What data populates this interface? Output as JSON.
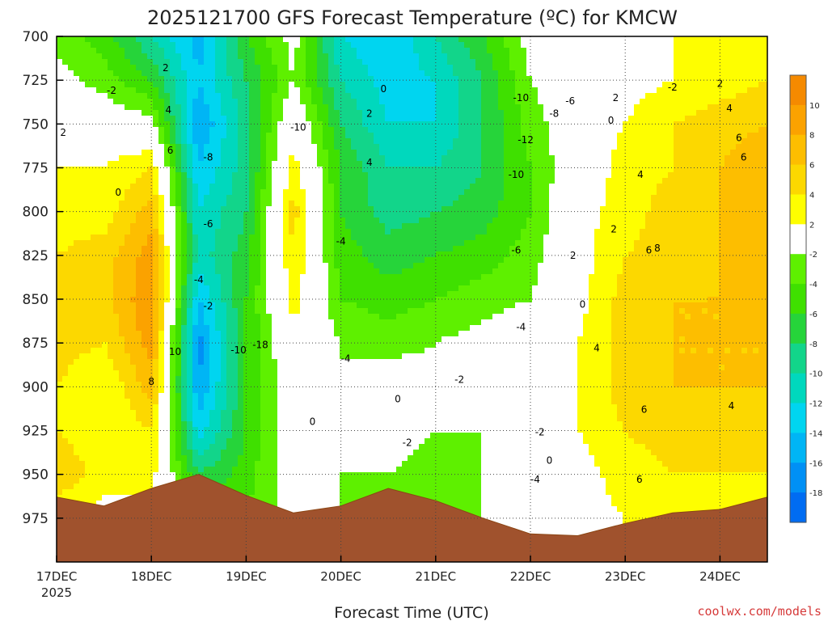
{
  "chart_data": {
    "type": "heatmap",
    "title": "2025121700 GFS Forecast Temperature (ºC) for KMCW",
    "xlabel": "Forecast Time (UTC)",
    "credit": "coolwx.com/models",
    "x_ticks": [
      "17DEC",
      "18DEC",
      "19DEC",
      "20DEC",
      "21DEC",
      "22DEC",
      "23DEC",
      "24DEC"
    ],
    "x_year": "2025",
    "y_ticks": [
      "700",
      "725",
      "750",
      "775",
      "800",
      "825",
      "850",
      "875",
      "900",
      "925",
      "950",
      "975"
    ],
    "ylim": [
      1000,
      700
    ],
    "xlim_days": [
      0,
      7.5
    ],
    "grid": true,
    "colorbar": {
      "labels": [
        "10",
        "8",
        "6",
        "4",
        "2",
        "-2",
        "-4",
        "-6",
        "-8",
        "-10",
        "-12",
        "-14",
        "-16",
        "-18"
      ],
      "colors": [
        "#f58a00",
        "#fba200",
        "#fdbe00",
        "#fcd800",
        "#fefe00",
        "#ffffff",
        "#5ef000",
        "#3fe000",
        "#26d43a",
        "#12d58a",
        "#00d8bd",
        "#00d5f0",
        "#00b5f5",
        "#0090f5",
        "#006cf2"
      ]
    },
    "x_days": [
      0,
      0.5,
      1,
      1.5,
      2,
      2.5,
      3,
      3.5,
      4,
      4.5,
      5,
      5.5,
      6,
      6.5,
      7,
      7.5
    ],
    "levels_hPa": [
      700,
      725,
      750,
      775,
      800,
      825,
      850,
      875,
      900,
      925,
      950,
      975
    ],
    "temperature_C": [
      [
        -3,
        -5,
        -10,
        -15,
        -6,
        -1,
        -12,
        -14,
        -10,
        -6,
        -1,
        0,
        1,
        2,
        3,
        4
      ],
      [
        -1,
        -3,
        -6,
        -14,
        -8,
        -2,
        -10,
        -13,
        -12,
        -8,
        -2,
        0,
        1,
        2,
        3,
        4
      ],
      [
        1,
        0,
        -1,
        -16,
        -9,
        1,
        -8,
        -12,
        -12,
        -8,
        -3,
        0,
        2,
        4,
        5,
        6
      ],
      [
        2,
        2,
        4,
        -14,
        -9,
        3,
        -6,
        -10,
        -10,
        -8,
        -4,
        0,
        3,
        4,
        6,
        8
      ],
      [
        3,
        3,
        7,
        -12,
        -8,
        5,
        -6,
        -9,
        -8,
        -7,
        -4,
        1,
        3,
        5,
        6,
        8
      ],
      [
        4,
        5,
        9,
        -11,
        -7,
        4,
        -5,
        -7,
        -6,
        -5,
        -3,
        1,
        4,
        5,
        6,
        8
      ],
      [
        6,
        5,
        10,
        -14,
        -6,
        3,
        -4,
        -5,
        -4,
        -3,
        -2,
        1,
        5,
        6,
        6,
        7
      ],
      [
        5,
        4,
        9,
        -17,
        -6,
        1,
        -2,
        -3,
        -2,
        -1,
        0,
        2,
        5,
        6,
        6,
        6
      ],
      [
        4,
        2,
        7,
        -16,
        -6,
        0,
        -2,
        0,
        -1,
        -2,
        0,
        2,
        5,
        6,
        6,
        6
      ],
      [
        4,
        2,
        4,
        -13,
        -6,
        0,
        -2,
        -1,
        -2,
        -2,
        0,
        2,
        4,
        5,
        5,
        5
      ],
      [
        6,
        3,
        3,
        -8,
        -5,
        0,
        -2,
        -2,
        -3,
        -2,
        0,
        1,
        3,
        4,
        4,
        4
      ],
      [
        2,
        1,
        1,
        -4,
        -4,
        -1,
        -2,
        -3,
        -3,
        -2,
        0,
        1,
        2,
        3,
        3,
        3
      ]
    ],
    "terrain_hPa": [
      963,
      968,
      958,
      950,
      962,
      972,
      968,
      958,
      965,
      975,
      984,
      985,
      978,
      972,
      970,
      963
    ],
    "contour_labels": [
      "2",
      "-2",
      "0",
      "2",
      "4",
      "6",
      "8",
      "10",
      "-8",
      "-6",
      "-4",
      "-2",
      "-10",
      "-18",
      "-10",
      "0",
      "2",
      "4",
      "0",
      "-4",
      "-4",
      "0",
      "-2",
      "-10",
      "-8",
      "-6",
      "-12",
      "-10",
      "-6",
      "-4",
      "-2",
      "-2",
      "-4",
      "0",
      "2",
      "0",
      "2",
      "0",
      "-2",
      "2",
      "4",
      "6",
      "8",
      "4",
      "6",
      "6",
      "4",
      "6",
      "2",
      "4",
      "6"
    ]
  }
}
